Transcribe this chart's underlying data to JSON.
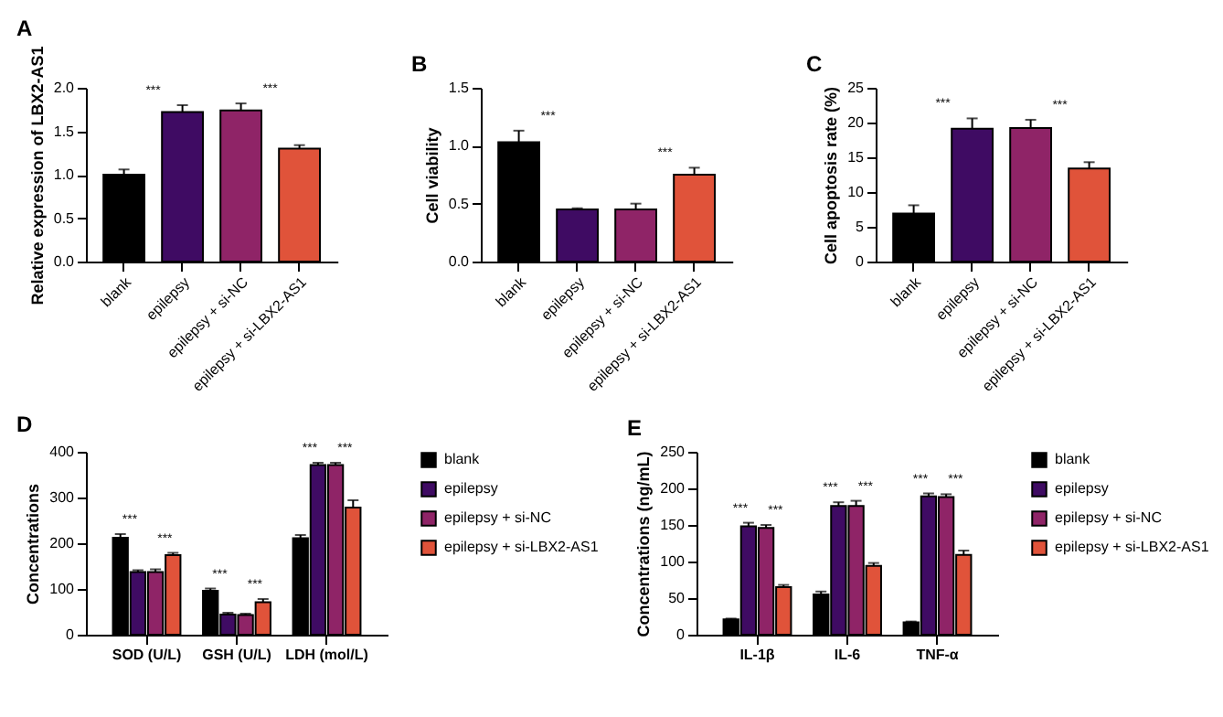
{
  "chart_data": [
    {
      "type": "bar",
      "title": "A",
      "ylabel": "Relative expression of LBX2-AS1",
      "categories": [
        "blank",
        "epilepsy",
        "epilepsy + si-NC",
        "epilepsy + si-LBX2-AS1"
      ],
      "values": [
        1.0,
        1.72,
        1.74,
        1.3
      ],
      "errors": [
        0.06,
        0.08,
        0.08,
        0.04
      ],
      "colors": [
        "#000000",
        "#3f0b63",
        "#8f2467",
        "#e0533a"
      ],
      "ylim": [
        0,
        2
      ],
      "yticks": [
        {
          "value": 0,
          "label": "0.0"
        },
        {
          "value": 0.5,
          "label": "0.5"
        },
        {
          "value": 1,
          "label": "1.0"
        },
        {
          "value": 1.5,
          "label": "1.5"
        },
        {
          "value": 2,
          "label": "2.0"
        }
      ],
      "annotations": [
        "***",
        "***"
      ]
    },
    {
      "type": "bar",
      "title": "B",
      "ylabel": "Cell viability",
      "categories": [
        "blank",
        "epilepsy",
        "epilepsy + si-NC",
        "epilepsy + si-LBX2-AS1"
      ],
      "values": [
        1.03,
        0.45,
        0.45,
        0.75
      ],
      "errors": [
        0.1,
        0.01,
        0.05,
        0.06
      ],
      "colors": [
        "#000000",
        "#3f0b63",
        "#8f2467",
        "#e0533a"
      ],
      "ylim": [
        0,
        1.5
      ],
      "yticks": [
        {
          "value": 0,
          "label": "0.0"
        },
        {
          "value": 0.5,
          "label": "0.5"
        },
        {
          "value": 1,
          "label": "1.0"
        },
        {
          "value": 1.5,
          "label": "1.5"
        }
      ],
      "annotations": [
        "***",
        "***"
      ]
    },
    {
      "type": "bar",
      "title": "C",
      "ylabel": "Cell apoptosis rate (%)",
      "categories": [
        "blank",
        "epilepsy",
        "epilepsy + si-NC",
        "epilepsy + si-LBX2-AS1"
      ],
      "values": [
        6.9,
        19.1,
        19.2,
        13.4
      ],
      "errors": [
        1.2,
        1.5,
        1.2,
        0.9
      ],
      "colors": [
        "#000000",
        "#3f0b63",
        "#8f2467",
        "#e0533a"
      ],
      "ylim": [
        0,
        25
      ],
      "yticks": [
        0,
        5,
        10,
        15,
        20,
        25
      ],
      "annotations": [
        "***",
        "***"
      ]
    },
    {
      "type": "bar",
      "title": "D",
      "ylabel": "Concentrations",
      "categories": [
        "SOD (U/L)",
        "GSH (U/L)",
        "LDH (mol/L)"
      ],
      "ylim": [
        0,
        400
      ],
      "yticks": [
        0,
        100,
        200,
        300,
        400
      ],
      "legend": "right",
      "series": [
        {
          "name": "blank",
          "color": "#000000",
          "values": [
            212,
            96,
            211
          ],
          "errors": [
            8,
            5,
            7
          ]
        },
        {
          "name": "epilepsy",
          "color": "#3f0b63",
          "values": [
            137,
            44,
            371
          ],
          "errors": [
            4,
            4,
            5
          ]
        },
        {
          "name": "epilepsy + si-NC",
          "color": "#8f2467",
          "values": [
            137,
            43,
            371
          ],
          "errors": [
            6,
            3,
            5
          ]
        },
        {
          "name": "epilepsy + si-LBX2-AS1",
          "color": "#e0533a",
          "values": [
            174,
            71,
            278
          ],
          "errors": [
            5,
            7,
            16
          ]
        }
      ],
      "annotations": [
        "***",
        "***",
        "***",
        "***",
        "***",
        "***"
      ]
    },
    {
      "type": "bar",
      "title": "E",
      "ylabel": "Concentrations (ng/mL)",
      "categories": [
        "IL-1β",
        "IL-6",
        "TNF-α"
      ],
      "ylim": [
        0,
        250
      ],
      "yticks": [
        0,
        50,
        100,
        150,
        200,
        250
      ],
      "legend": "right",
      "series": [
        {
          "name": "blank",
          "color": "#000000",
          "values": [
            21,
            55,
            17
          ],
          "errors": [
            1,
            4,
            1
          ]
        },
        {
          "name": "epilepsy",
          "color": "#3f0b63",
          "values": [
            148,
            176,
            189
          ],
          "errors": [
            5,
            5,
            4
          ]
        },
        {
          "name": "epilepsy + si-NC",
          "color": "#8f2467",
          "values": [
            146,
            176,
            188
          ],
          "errors": [
            4,
            7,
            4
          ]
        },
        {
          "name": "epilepsy + si-LBX2-AS1",
          "color": "#e0533a",
          "values": [
            65,
            94,
            109
          ],
          "errors": [
            3,
            4,
            6
          ]
        }
      ],
      "annotations": [
        "***",
        "***",
        "***",
        "***",
        "***",
        "***"
      ]
    }
  ]
}
